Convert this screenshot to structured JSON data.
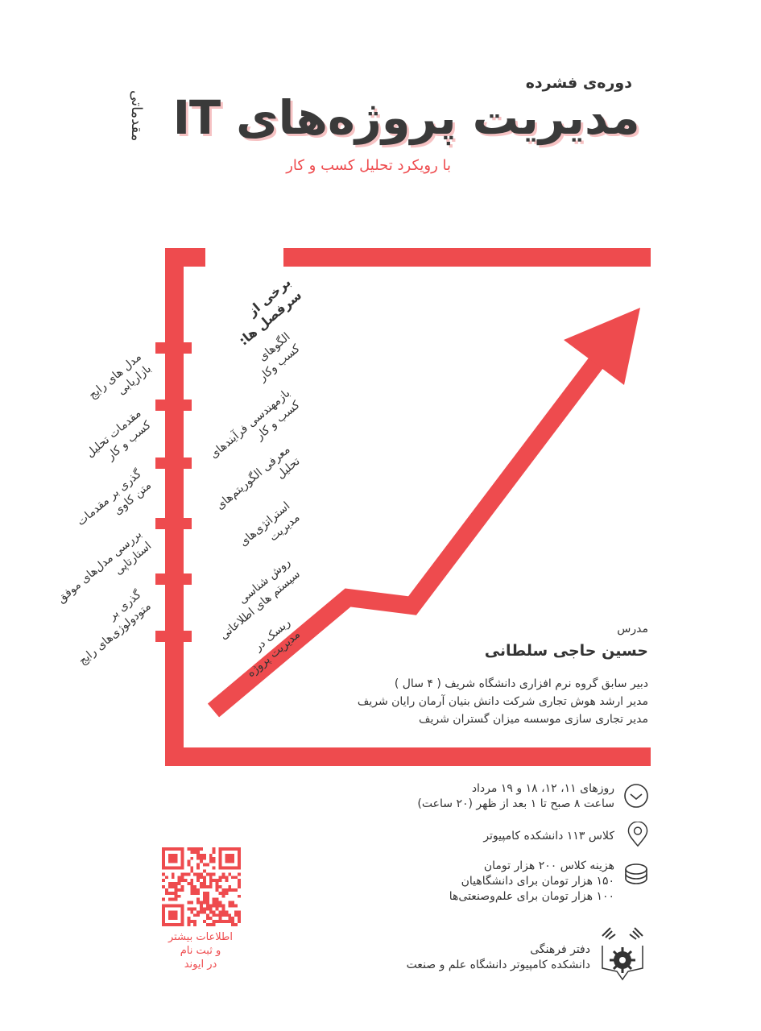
{
  "header": {
    "course_type": "دوره‌ی فشرده",
    "title": "مدیریت پروژه‌های IT",
    "subtitle": "با رویکرد تحلیل کسب و کار",
    "level": "مقدماتی"
  },
  "topics": {
    "heading": "برخی از\nسرفصل ها:",
    "right_column": [
      "الگوهای\nکسب وکار",
      "بازمهندسی فرآیندهای\nکسب و کار",
      "معرفی الگوریتم‌های\nتحلیل",
      "استراتژی‌های\nمدیریت",
      "روش شناسی\nسیستم های اطلاعاتی",
      "ریسک در\nمدیریت پروژه"
    ],
    "left_column": [
      "مدل های رایج\nبازاریابی",
      "مقدمات تحلیل\nکسب و کار",
      "گذری بر مقدمات\nمتن کاوی",
      "بررسی مدل‌های موفق\nاستارتاپی",
      "گذری بر\nمتودولوژی‌های رایج"
    ]
  },
  "instructor": {
    "label": "مدرس",
    "name": "حسین حاجی سلطانی",
    "bio": [
      "دبیر سابق گروه نرم افزاری دانشگاه شریف ( ۴ سال )",
      "مدیر ارشد هوش تجاری شرکت دانش بنیان آرمان رایان شریف",
      "مدیر تجاری سازی موسسه میزان گستران شریف"
    ]
  },
  "details": {
    "schedule": [
      "روزهای ۱۱، ۱۲، ۱۸ و ۱۹ مرداد",
      "ساعت ۸ صبح تا ۱ بعد از ظهر (۲۰ ساعت)"
    ],
    "location": "کلاس ۱۱۳ دانشکده کامپیوتر",
    "fees": [
      "هزینه کلاس ۲۰۰ هزار تومان",
      "۱۵۰ هزار تومان برای دانشگاهیان",
      "۱۰۰ هزار تومان برای علم‌وصنعتی‌ها"
    ],
    "icons": [
      "clock-icon",
      "location-pin-icon",
      "coins-icon"
    ]
  },
  "registration": {
    "text": [
      "اطلاعات بیشتر",
      "و ثبت نام",
      "در ایوند"
    ]
  },
  "organizer": {
    "line1": "دفتر فرهنگی",
    "line2": "دانشکده کامپیوتر دانشگاه علم و صنعت"
  },
  "colors": {
    "accent": "#ee4b4e",
    "text": "#333333"
  }
}
